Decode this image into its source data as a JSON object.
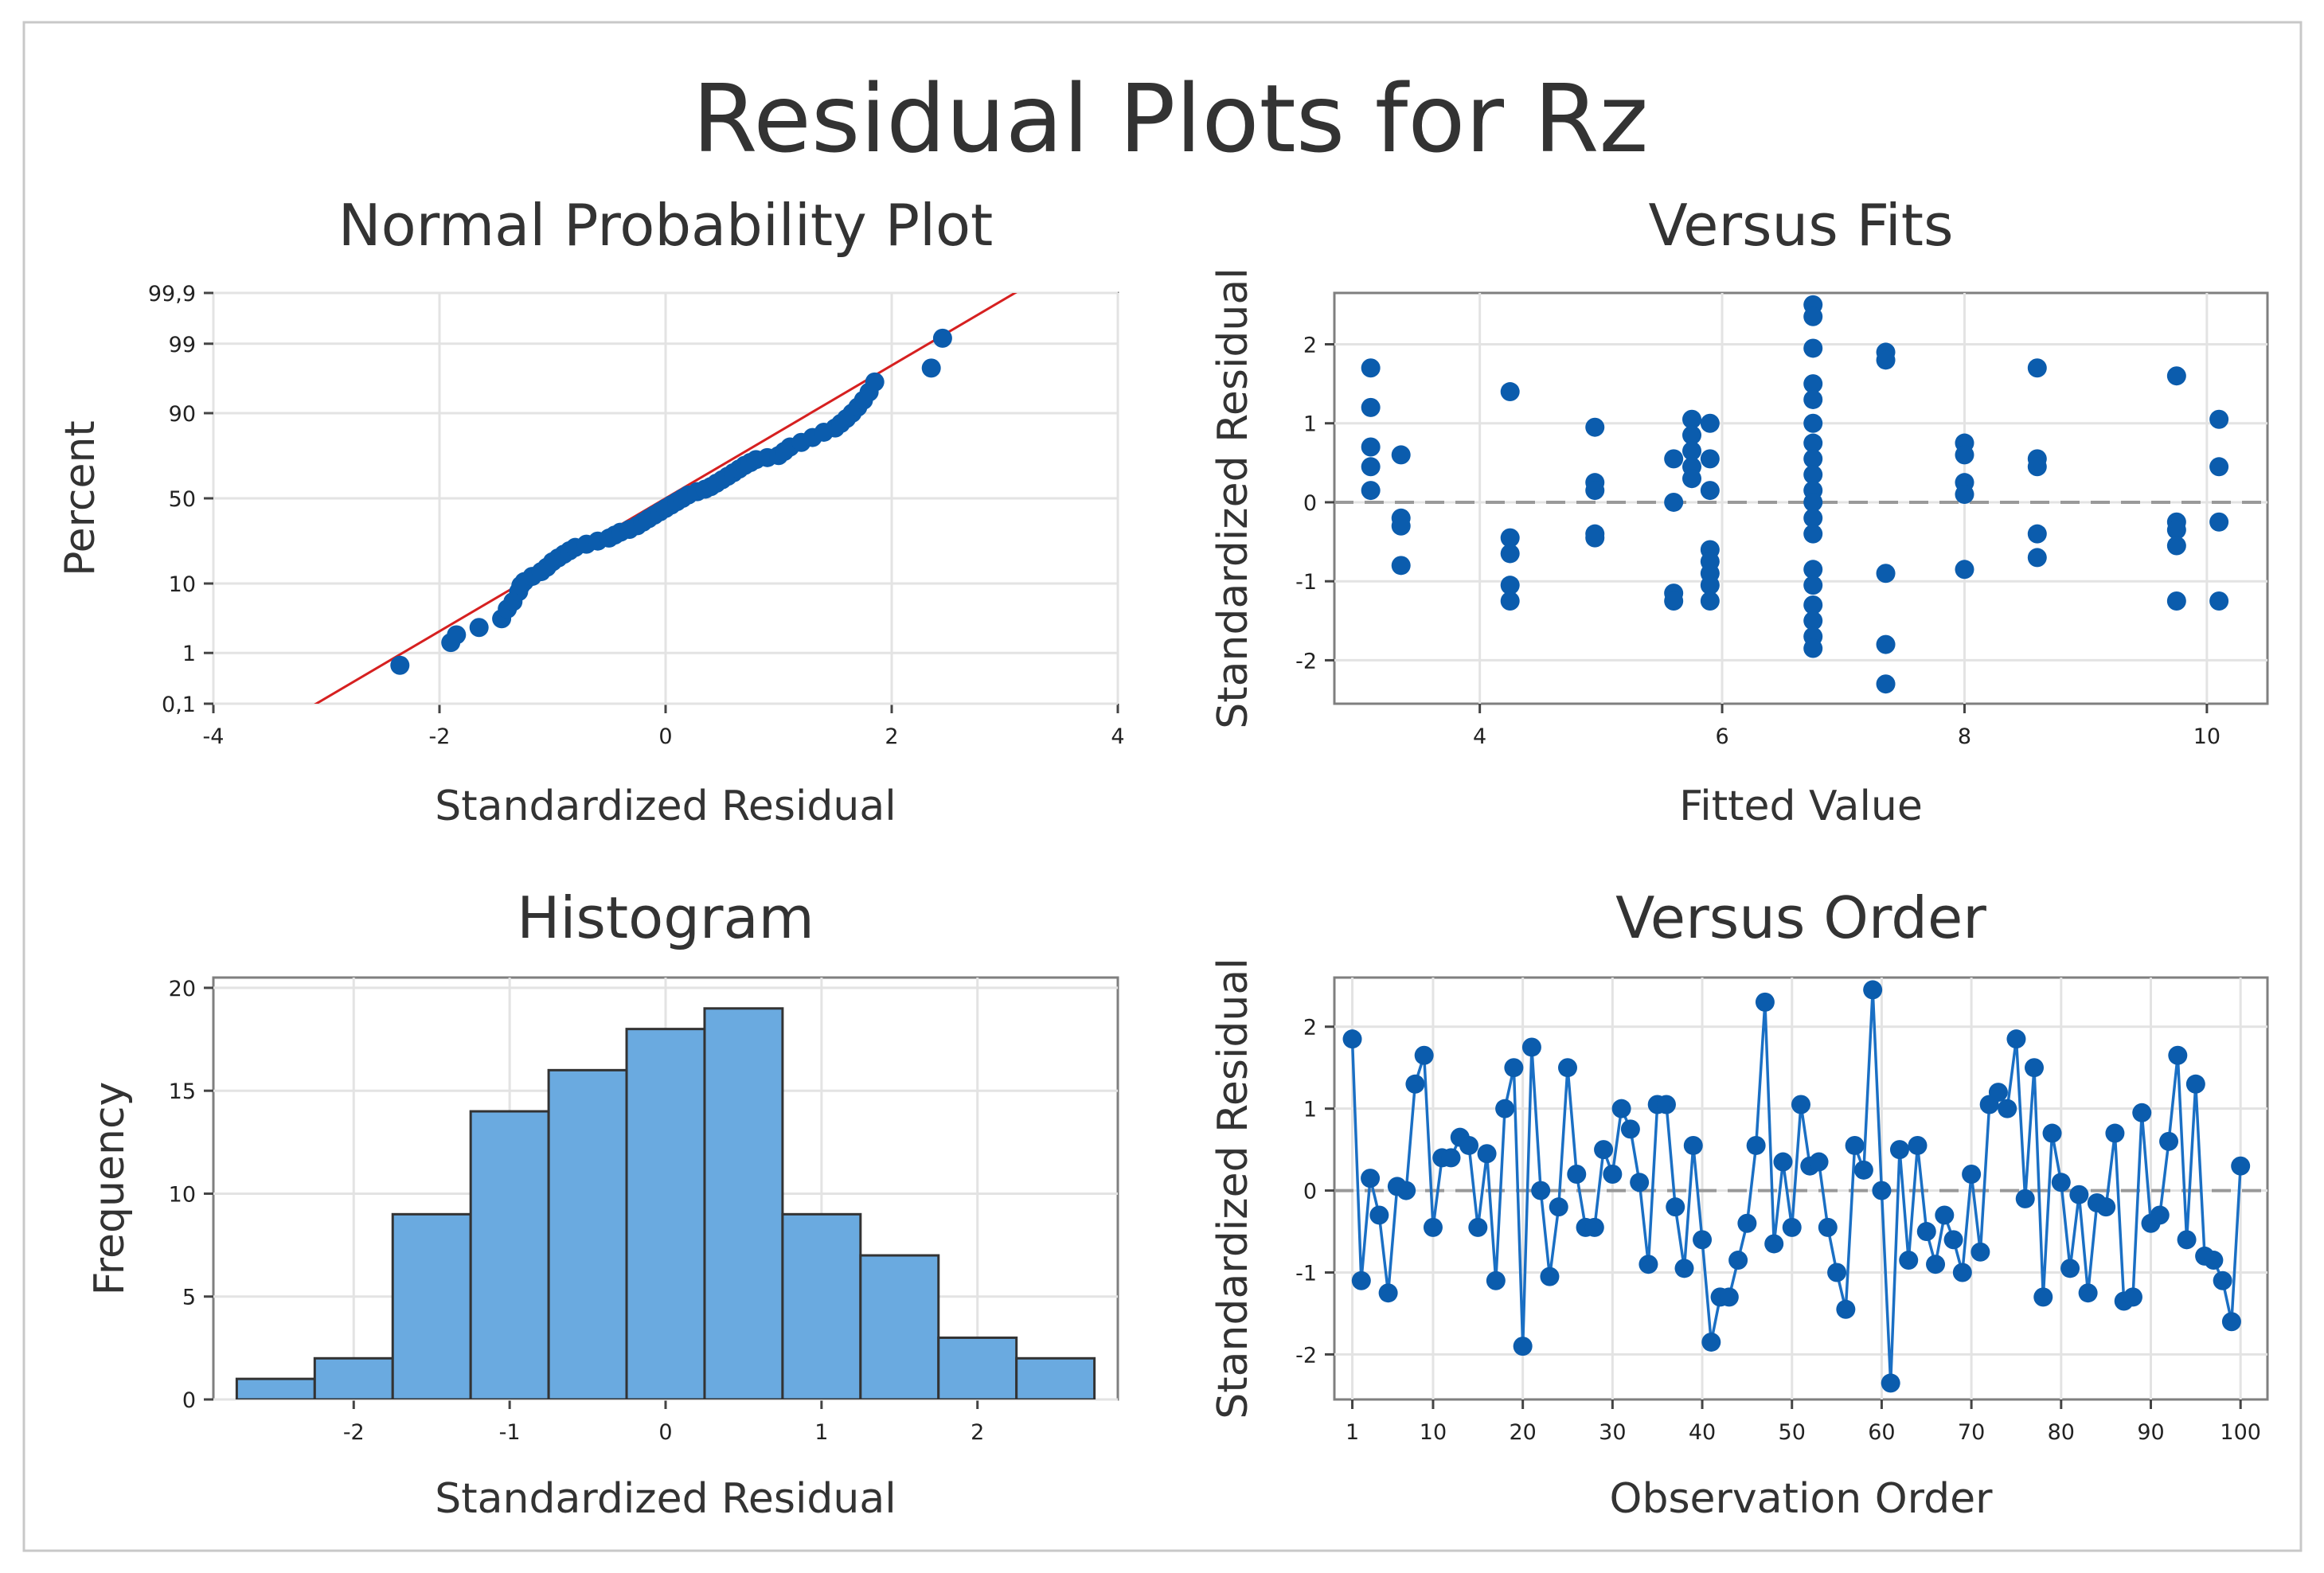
{
  "title": "Residual Plots for Rz",
  "colors": {
    "point": "#0b5cad",
    "bar": "#6aaae0",
    "fit_line": "#d62020",
    "order_line": "#1a6fc4"
  },
  "chart_data": [
    {
      "type": "scatter",
      "title": "Normal Probability Plot",
      "xlabel": "Standardized Residual",
      "ylabel": "Percent",
      "xlim": [
        -4,
        4
      ],
      "xticks": [
        -4,
        -2,
        0,
        2,
        4
      ],
      "yscale": "normal-probability",
      "ylim": [
        0.1,
        99.9
      ],
      "yticks": [
        0.1,
        1,
        10,
        50,
        90,
        99,
        99.9
      ],
      "yticklabels": [
        "0,1",
        "1",
        "10",
        "50",
        "90",
        "99",
        "99,9"
      ],
      "fit_line": {
        "mean": 0,
        "sd": 1
      },
      "grid": true,
      "points": [
        [
          -2.35,
          0.6
        ],
        [
          -1.9,
          1.5
        ],
        [
          -1.85,
          2.0
        ],
        [
          -1.65,
          2.6
        ],
        [
          -1.45,
          3.5
        ],
        [
          -1.4,
          4.8
        ],
        [
          -1.35,
          6.0
        ],
        [
          -1.3,
          8.0
        ],
        [
          -1.28,
          9.5
        ],
        [
          -1.25,
          10.5
        ],
        [
          -1.18,
          12
        ],
        [
          -1.1,
          13.5
        ],
        [
          -1.05,
          15
        ],
        [
          -1.0,
          17
        ],
        [
          -0.95,
          18.5
        ],
        [
          -0.9,
          20
        ],
        [
          -0.85,
          21.5
        ],
        [
          -0.8,
          23
        ],
        [
          -0.7,
          24.5
        ],
        [
          -0.6,
          26
        ],
        [
          -0.5,
          27.5
        ],
        [
          -0.45,
          29
        ],
        [
          -0.4,
          30.5
        ],
        [
          -0.32,
          32
        ],
        [
          -0.25,
          34
        ],
        [
          -0.2,
          36
        ],
        [
          -0.15,
          38
        ],
        [
          -0.1,
          40
        ],
        [
          -0.05,
          42
        ],
        [
          0.0,
          44
        ],
        [
          0.05,
          46
        ],
        [
          0.1,
          48
        ],
        [
          0.15,
          50
        ],
        [
          0.2,
          52
        ],
        [
          0.28,
          54
        ],
        [
          0.35,
          55.5
        ],
        [
          0.4,
          57
        ],
        [
          0.45,
          59
        ],
        [
          0.5,
          61
        ],
        [
          0.55,
          63
        ],
        [
          0.6,
          65
        ],
        [
          0.65,
          67
        ],
        [
          0.7,
          69
        ],
        [
          0.75,
          70.5
        ],
        [
          0.8,
          72
        ],
        [
          0.9,
          73
        ],
        [
          1.0,
          74
        ],
        [
          1.05,
          76
        ],
        [
          1.1,
          78
        ],
        [
          1.2,
          80
        ],
        [
          1.3,
          82
        ],
        [
          1.4,
          84
        ],
        [
          1.5,
          85.5
        ],
        [
          1.55,
          87
        ],
        [
          1.6,
          88.5
        ],
        [
          1.65,
          90
        ],
        [
          1.7,
          91.5
        ],
        [
          1.75,
          93
        ],
        [
          1.8,
          94.5
        ],
        [
          1.85,
          96
        ],
        [
          2.35,
          97.5
        ],
        [
          2.45,
          99.2
        ]
      ]
    },
    {
      "type": "scatter",
      "title": "Versus Fits",
      "xlabel": "Fitted Value",
      "ylabel": "Standardized Residual",
      "xlim": [
        2.8,
        10.5
      ],
      "xticks": [
        4,
        6,
        8,
        10
      ],
      "ylim": [
        -2.55,
        2.65
      ],
      "yticks": [
        -2,
        -1,
        0,
        1,
        2
      ],
      "zero_line": true,
      "grid": true,
      "points": [
        [
          3.1,
          1.7
        ],
        [
          3.1,
          1.2
        ],
        [
          3.1,
          0.7
        ],
        [
          3.1,
          0.45
        ],
        [
          3.1,
          0.15
        ],
        [
          3.35,
          0.6
        ],
        [
          3.35,
          -0.2
        ],
        [
          3.35,
          -0.3
        ],
        [
          3.35,
          -0.8
        ],
        [
          4.25,
          1.4
        ],
        [
          4.25,
          -0.45
        ],
        [
          4.25,
          -0.65
        ],
        [
          4.25,
          -1.05
        ],
        [
          4.25,
          -1.25
        ],
        [
          4.95,
          0.95
        ],
        [
          4.95,
          0.25
        ],
        [
          4.95,
          0.15
        ],
        [
          4.95,
          -0.4
        ],
        [
          4.95,
          -0.45
        ],
        [
          5.6,
          0.55
        ],
        [
          5.6,
          0.0
        ],
        [
          5.6,
          -1.15
        ],
        [
          5.6,
          -1.25
        ],
        [
          5.75,
          1.05
        ],
        [
          5.75,
          0.85
        ],
        [
          5.75,
          0.65
        ],
        [
          5.75,
          0.45
        ],
        [
          5.75,
          0.3
        ],
        [
          5.9,
          1.0
        ],
        [
          5.9,
          0.55
        ],
        [
          5.9,
          0.15
        ],
        [
          5.9,
          -0.6
        ],
        [
          5.9,
          -0.75
        ],
        [
          5.9,
          -0.9
        ],
        [
          5.9,
          -1.05
        ],
        [
          5.9,
          -1.25
        ],
        [
          6.75,
          2.5
        ],
        [
          6.75,
          2.35
        ],
        [
          6.75,
          1.95
        ],
        [
          6.75,
          1.5
        ],
        [
          6.75,
          1.3
        ],
        [
          6.75,
          1.0
        ],
        [
          6.75,
          0.75
        ],
        [
          6.75,
          0.55
        ],
        [
          6.75,
          0.35
        ],
        [
          6.75,
          0.15
        ],
        [
          6.75,
          0.0
        ],
        [
          6.75,
          -0.2
        ],
        [
          6.75,
          -0.4
        ],
        [
          6.75,
          -0.85
        ],
        [
          6.75,
          -1.05
        ],
        [
          6.75,
          -1.3
        ],
        [
          6.75,
          -1.5
        ],
        [
          6.75,
          -1.7
        ],
        [
          6.75,
          -1.85
        ],
        [
          7.35,
          1.9
        ],
        [
          7.35,
          1.8
        ],
        [
          7.35,
          -0.9
        ],
        [
          7.35,
          -1.8
        ],
        [
          7.35,
          -2.3
        ],
        [
          8.0,
          0.75
        ],
        [
          8.0,
          0.6
        ],
        [
          8.0,
          0.25
        ],
        [
          8.0,
          0.1
        ],
        [
          8.0,
          -0.85
        ],
        [
          8.6,
          1.7
        ],
        [
          8.6,
          0.55
        ],
        [
          8.6,
          0.45
        ],
        [
          8.6,
          -0.4
        ],
        [
          8.6,
          -0.7
        ],
        [
          9.75,
          1.6
        ],
        [
          9.75,
          -0.25
        ],
        [
          9.75,
          -0.35
        ],
        [
          9.75,
          -0.55
        ],
        [
          9.75,
          -1.25
        ],
        [
          10.1,
          1.05
        ],
        [
          10.1,
          0.45
        ],
        [
          10.1,
          -0.25
        ],
        [
          10.1,
          -1.25
        ]
      ]
    },
    {
      "type": "bar",
      "title": "Histogram",
      "xlabel": "Standardized Residual",
      "ylabel": "Frequency",
      "xlim": [
        -2.9,
        2.9
      ],
      "xticks": [
        -2,
        -1,
        0,
        1,
        2
      ],
      "ylim": [
        0,
        20.5
      ],
      "yticks": [
        0,
        5,
        10,
        15,
        20
      ],
      "grid": true,
      "bin_edges": [
        -2.75,
        -2.25,
        -1.75,
        -1.25,
        -0.75,
        -0.25,
        0.25,
        0.75,
        1.25,
        1.75,
        2.25,
        2.75
      ],
      "values": [
        1,
        2,
        9,
        14,
        16,
        18,
        19,
        9,
        7,
        3,
        2
      ]
    },
    {
      "type": "line",
      "title": "Versus Order",
      "xlabel": "Observation Order",
      "ylabel": "Standardized Residual",
      "xlim": [
        -1,
        103
      ],
      "xticks": [
        1,
        10,
        20,
        30,
        40,
        50,
        60,
        70,
        80,
        90,
        100
      ],
      "ylim": [
        -2.55,
        2.6
      ],
      "yticks": [
        -2,
        -1,
        0,
        1,
        2
      ],
      "zero_line": true,
      "grid": true,
      "x": [
        1,
        2,
        3,
        4,
        5,
        6,
        7,
        8,
        9,
        10,
        11,
        12,
        13,
        14,
        15,
        16,
        17,
        18,
        19,
        20,
        21,
        22,
        23,
        24,
        25,
        26,
        27,
        28,
        29,
        30,
        31,
        32,
        33,
        34,
        35,
        36,
        37,
        38,
        39,
        40,
        41,
        42,
        43,
        44,
        45,
        46,
        47,
        48,
        49,
        50,
        51,
        52,
        53,
        54,
        55,
        56,
        57,
        58,
        59,
        60,
        61,
        62,
        63,
        64,
        65,
        66,
        67,
        68,
        69,
        70,
        71,
        72,
        73,
        74,
        75,
        76,
        77,
        78,
        79,
        80,
        81,
        82,
        83,
        84,
        85,
        86,
        87,
        88,
        89,
        90,
        91,
        92,
        93,
        94,
        95,
        96,
        97,
        98,
        99,
        100
      ],
      "y": [
        1.85,
        -1.1,
        0.15,
        -0.3,
        -1.25,
        0.05,
        0.0,
        1.3,
        1.65,
        -0.45,
        0.4,
        0.4,
        0.65,
        0.55,
        -0.45,
        0.45,
        -1.1,
        1.0,
        1.5,
        -1.9,
        1.75,
        0.0,
        -1.05,
        -0.2,
        1.5,
        0.2,
        -0.45,
        -0.45,
        0.5,
        0.2,
        1.0,
        0.75,
        0.1,
        -0.9,
        1.05,
        1.05,
        -0.2,
        -0.95,
        0.55,
        -0.6,
        -1.85,
        -1.3,
        -1.3,
        -0.85,
        -0.4,
        0.55,
        2.3,
        -0.65,
        0.35,
        -0.45,
        1.05,
        0.3,
        0.35,
        -0.45,
        -1.0,
        -1.45,
        0.55,
        0.25,
        2.45,
        0.0,
        -2.35,
        0.5,
        -0.85,
        0.55,
        -0.5,
        -0.9,
        -0.3,
        -0.6,
        -1.0,
        0.2,
        -0.75,
        1.05,
        1.2,
        1.0,
        1.85,
        -0.1,
        1.5,
        -1.3,
        0.7,
        0.1,
        -0.95,
        -0.05,
        -1.25,
        -0.15,
        -0.2,
        0.7,
        -1.35,
        -1.3,
        0.95,
        -0.4,
        -0.3,
        0.6,
        1.65,
        -0.6,
        1.3,
        -0.8,
        -0.85,
        -1.1,
        -1.6,
        0.3
      ]
    }
  ]
}
